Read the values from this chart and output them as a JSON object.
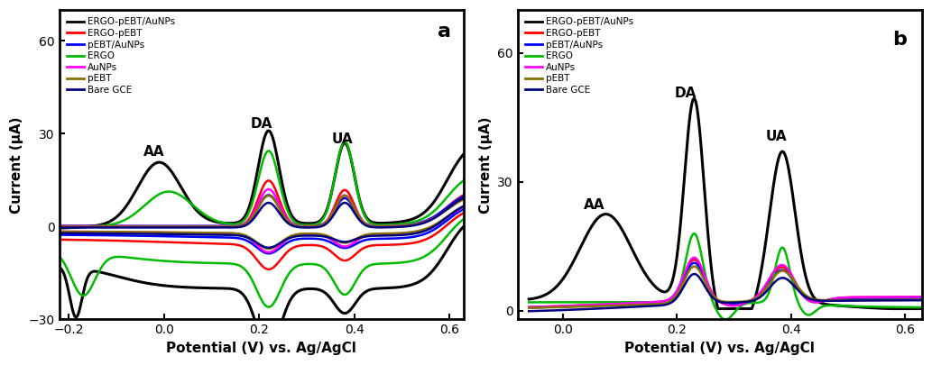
{
  "panel_a": {
    "xlabel": "Potential (V) vs. Ag/AgCl",
    "ylabel": "Current (μA)",
    "xlim": [
      -0.22,
      0.63
    ],
    "ylim": [
      -30,
      70
    ],
    "yticks": [
      -30,
      0,
      30,
      60
    ],
    "xticks": [
      -0.2,
      0.0,
      0.2,
      0.4,
      0.6
    ],
    "label": "a",
    "ann_AA": [
      -0.02,
      22
    ],
    "ann_DA": [
      0.205,
      31
    ],
    "ann_UA": [
      0.375,
      26
    ],
    "legend_entries": [
      {
        "label": "ERGO-pEBT/AuNPs",
        "color": "#000000"
      },
      {
        "label": "ERGO-pEBT",
        "color": "#ff0000"
      },
      {
        "label": "pEBT/AuNPs",
        "color": "#0000ff"
      },
      {
        "label": "ERGO",
        "color": "#00bb00"
      },
      {
        "label": "AuNPs",
        "color": "#ff00ff"
      },
      {
        "label": "pEBT",
        "color": "#8B7000"
      },
      {
        "label": "Bare GCE",
        "color": "#000080"
      }
    ]
  },
  "panel_b": {
    "xlabel": "Potential (V) vs. Ag/AgCl",
    "ylabel": "Current (μA)",
    "xlim": [
      -0.08,
      0.63
    ],
    "ylim": [
      -2,
      70
    ],
    "yticks": [
      0,
      30,
      60
    ],
    "xticks": [
      0.0,
      0.2,
      0.4,
      0.6
    ],
    "label": "b",
    "ann_AA": [
      0.055,
      23
    ],
    "ann_DA": [
      0.215,
      49
    ],
    "ann_UA": [
      0.375,
      39
    ],
    "legend_entries": [
      {
        "label": "ERGO-pEBT/AuNPs",
        "color": "#000000"
      },
      {
        "label": "ERGO-pEBT",
        "color": "#ff0000"
      },
      {
        "label": "pEBT/AuNPs",
        "color": "#0000ff"
      },
      {
        "label": "ERGO",
        "color": "#00bb00"
      },
      {
        "label": "AuNPs",
        "color": "#ff00ff"
      },
      {
        "label": "pEBT",
        "color": "#8B7000"
      },
      {
        "label": "Bare GCE",
        "color": "#000080"
      }
    ]
  }
}
